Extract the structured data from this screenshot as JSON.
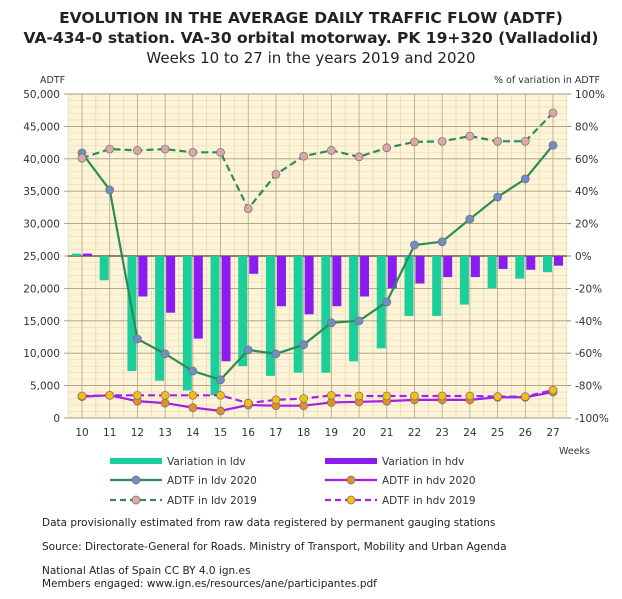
{
  "chart_data": {
    "type": "bar+line",
    "title": "EVOLUTION IN THE AVERAGE DAILY TRAFFIC FLOW (ADTF)",
    "subtitle": "VA-434-0 station. VA-30 orbital motorway. PK 19+320 (Valladolid)",
    "subtitle2": "Weeks 10 to 27 in the years 2019 and 2020",
    "xlabel": "Weeks",
    "ylabel_left": "ADTF",
    "ylabel_right": "% of variation in ADTF",
    "ylim_left": [
      0,
      50000
    ],
    "ylim_right": [
      -100,
      100
    ],
    "yticks_left": [
      "0",
      "5,000",
      "10,000",
      "15,000",
      "20,000",
      "25,000",
      "30,000",
      "35,000",
      "40,000",
      "45,000",
      "50,000"
    ],
    "yticks_right": [
      "-100%",
      "-80%",
      "-60%",
      "-40%",
      "-20%",
      "0%",
      "20%",
      "40%",
      "60%",
      "80%",
      "100%"
    ],
    "grid": true,
    "legend_placement": "bottom",
    "categories": [
      "10",
      "11",
      "12",
      "13",
      "14",
      "15",
      "16",
      "17",
      "18",
      "19",
      "20",
      "21",
      "22",
      "23",
      "24",
      "25",
      "26",
      "27"
    ],
    "bars": [
      {
        "name": "Variation in ldv",
        "axis": "right",
        "color": "#1ccf9a",
        "values": [
          1.5,
          -15,
          -71,
          -77,
          -83,
          -86,
          -68,
          -74,
          -72,
          -72,
          -65,
          -57,
          -37,
          -37,
          -30,
          -20,
          -14,
          -10
        ]
      },
      {
        "name": "Variation in hdv",
        "axis": "right",
        "color": "#8b1cf0",
        "values": [
          1.5,
          0,
          -25,
          -35,
          -51,
          -65,
          -11,
          -31,
          -36,
          -31,
          -25,
          -20,
          -17,
          -13,
          -13,
          -8,
          -8.5,
          -6
        ]
      }
    ],
    "series": [
      {
        "name": "ADTF in ldv 2020",
        "axis": "left",
        "color": "#2e8b57",
        "marker": "#6f8fc4",
        "dash": false,
        "values": [
          40900,
          35200,
          12200,
          9900,
          7250,
          5900,
          10500,
          9900,
          11300,
          14700,
          15000,
          17900,
          26700,
          27200,
          30700,
          34100,
          36900,
          42100
        ]
      },
      {
        "name": "ADTF in ldv 2019",
        "axis": "left",
        "color": "#2e8b57",
        "marker": "#d9a9a9",
        "dash": true,
        "values": [
          40100,
          41500,
          41300,
          41500,
          41000,
          41000,
          32300,
          37600,
          40400,
          41300,
          40300,
          41700,
          42600,
          42700,
          43500,
          42700,
          42700,
          47100
        ]
      },
      {
        "name": "ADTF in hdv 2020",
        "axis": "left",
        "color": "#a020f0",
        "marker": "#e0902a",
        "dash": false,
        "values": [
          3300,
          3500,
          2600,
          2300,
          1600,
          1100,
          2000,
          1900,
          1900,
          2400,
          2500,
          2600,
          2800,
          2800,
          2800,
          3200,
          3200,
          4000
        ]
      },
      {
        "name": "ADTF in hdv 2019",
        "axis": "left",
        "color": "#a020f0",
        "marker": "#f2c014",
        "dash": true,
        "values": [
          3400,
          3500,
          3500,
          3500,
          3500,
          3500,
          2300,
          2800,
          3000,
          3500,
          3400,
          3400,
          3400,
          3400,
          3400,
          3300,
          3300,
          4300
        ]
      }
    ]
  },
  "footer": {
    "note": "Data provisionally estimated from raw data registered by permanent gauging stations",
    "source": "Source: Directorate-General for Roads. Ministry of Transport, Mobility and Urban Agenda",
    "atlas": "National Atlas of Spain CC BY 4.0 ign.es",
    "members": "Members engaged: www.ign.es/resources/ane/participantes.pdf"
  }
}
